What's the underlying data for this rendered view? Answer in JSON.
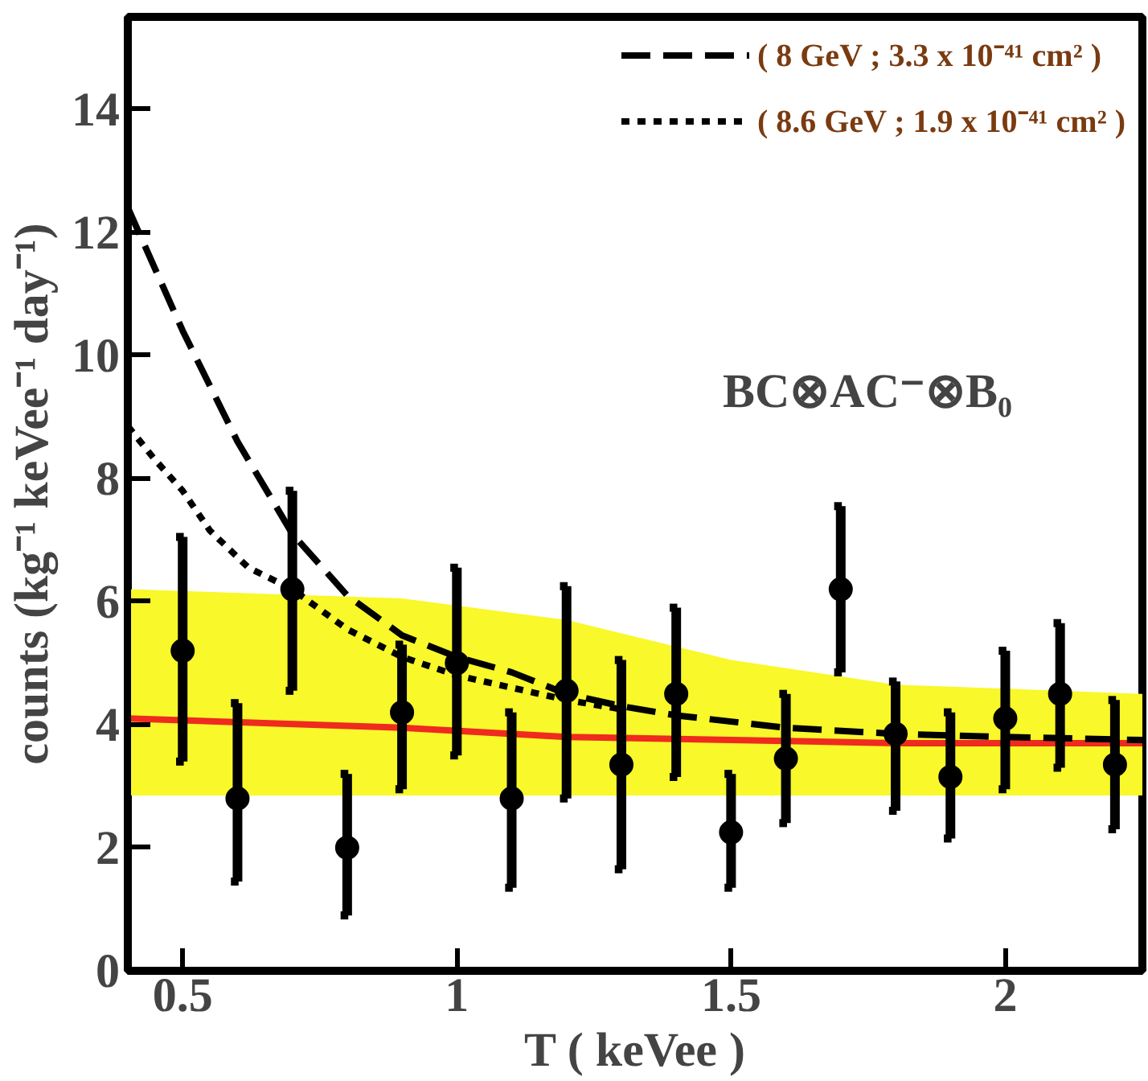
{
  "chart_data": {
    "type": "line",
    "xlabel": "T ( keVee )",
    "ylabel": "counts (kg⁻¹ keVee⁻¹ day⁻¹)",
    "xlim": [
      0.4,
      2.25
    ],
    "ylim": [
      0,
      15.5
    ],
    "xticks": [
      0.5,
      1,
      1.5,
      2
    ],
    "yticks": [
      0,
      2,
      4,
      6,
      8,
      10,
      12,
      14
    ],
    "grid": false,
    "legend": "top right",
    "annotations": [
      "BC⊗AC⁻⊗B₀"
    ],
    "series": [
      {
        "color": "#ee2b1e",
        "line_style": "solid",
        "x": [
          0.4,
          0.9,
          1.2,
          1.5,
          1.8,
          2.25
        ],
        "values": [
          4.1,
          3.95,
          3.8,
          3.75,
          3.7,
          3.7
        ],
        "lower": [
          2.85,
          2.85,
          2.85,
          2.85,
          2.85,
          2.85
        ],
        "upper": [
          6.2,
          6.05,
          5.7,
          5.05,
          4.65,
          4.5
        ]
      },
      {
        "name": "( 8 GeV ; 3.3 x 10⁻⁴¹ cm² )",
        "color": "#000000",
        "line_style": "dashed",
        "x": [
          0.4,
          0.5,
          0.6,
          0.7,
          0.8,
          0.9,
          1.0,
          1.1,
          1.2,
          1.3,
          1.4,
          1.5,
          1.6,
          1.8,
          2.0,
          2.25
        ],
        "values": [
          12.4,
          10.4,
          8.6,
          7.1,
          6.1,
          5.45,
          5.1,
          4.85,
          4.5,
          4.3,
          4.15,
          4.05,
          3.95,
          3.85,
          3.8,
          3.75
        ]
      },
      {
        "name": "( 8.6 GeV ; 1.9 x 10⁻⁴¹ cm² )",
        "color": "#000000",
        "line_style": "dotted",
        "x": [
          0.4,
          0.45,
          0.5,
          0.55,
          0.62,
          0.7,
          0.8,
          0.9,
          1.0,
          1.1,
          1.2,
          1.3
        ],
        "values": [
          8.85,
          8.3,
          7.8,
          7.15,
          6.55,
          6.2,
          5.55,
          5.1,
          4.8,
          4.6,
          4.4,
          4.25
        ]
      },
      {
        "type": "scatter",
        "color": "#000000",
        "marker": "circle",
        "x": [
          0.5,
          0.6,
          0.7,
          0.8,
          0.9,
          1.0,
          1.1,
          1.2,
          1.3,
          1.4,
          1.5,
          1.6,
          1.7,
          1.8,
          1.9,
          2.0,
          2.1,
          2.2
        ],
        "values": [
          5.2,
          2.8,
          6.2,
          2.0,
          4.2,
          5.0,
          2.8,
          4.55,
          3.35,
          4.5,
          2.25,
          3.45,
          6.2,
          3.85,
          3.15,
          4.1,
          4.5,
          3.35
        ],
        "errors": [
          [
            3.4,
            7.05
          ],
          [
            1.45,
            4.35
          ],
          [
            4.55,
            7.8
          ],
          [
            0.9,
            3.2
          ],
          [
            2.95,
            5.3
          ],
          [
            3.5,
            6.55
          ],
          [
            1.35,
            4.2
          ],
          [
            2.8,
            6.25
          ],
          [
            1.65,
            5.05
          ],
          [
            3.15,
            5.9
          ],
          [
            1.35,
            3.2
          ],
          [
            2.4,
            4.5
          ],
          [
            4.85,
            7.55
          ],
          [
            2.6,
            4.7
          ],
          [
            2.15,
            4.2
          ],
          [
            2.95,
            5.2
          ],
          [
            3.3,
            5.65
          ],
          [
            2.3,
            4.4
          ]
        ]
      }
    ]
  }
}
